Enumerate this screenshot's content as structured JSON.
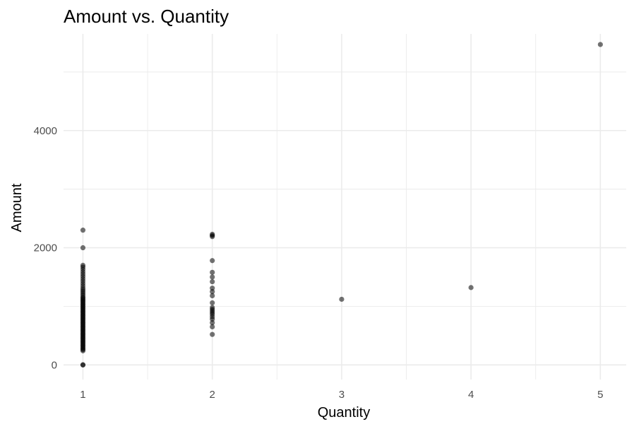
{
  "chart_data": {
    "type": "scatter",
    "title": "Amount vs. Quantity",
    "xlabel": "Quantity",
    "ylabel": "Amount",
    "xlim": [
      0.85,
      5.2
    ],
    "ylim": [
      -250,
      5650
    ],
    "x_ticks": [
      1,
      2,
      3,
      4,
      5
    ],
    "y_ticks": [
      0,
      2000,
      4000
    ],
    "x_minor_ticks": [
      1.5,
      2.5,
      3.5,
      4.5
    ],
    "y_minor_ticks": [
      1000,
      3000,
      5000
    ],
    "grid": true,
    "legend": "none",
    "point_color": "#000000",
    "point_opacity": 0.55,
    "points": [
      {
        "x": 1,
        "y": 0
      },
      {
        "x": 1,
        "y": 0
      },
      {
        "x": 1,
        "y": 240
      },
      {
        "x": 1,
        "y": 260
      },
      {
        "x": 1,
        "y": 280
      },
      {
        "x": 1,
        "y": 300
      },
      {
        "x": 1,
        "y": 320
      },
      {
        "x": 1,
        "y": 340
      },
      {
        "x": 1,
        "y": 360
      },
      {
        "x": 1,
        "y": 380
      },
      {
        "x": 1,
        "y": 400
      },
      {
        "x": 1,
        "y": 420
      },
      {
        "x": 1,
        "y": 440
      },
      {
        "x": 1,
        "y": 460
      },
      {
        "x": 1,
        "y": 480
      },
      {
        "x": 1,
        "y": 500
      },
      {
        "x": 1,
        "y": 520
      },
      {
        "x": 1,
        "y": 540
      },
      {
        "x": 1,
        "y": 560
      },
      {
        "x": 1,
        "y": 580
      },
      {
        "x": 1,
        "y": 600
      },
      {
        "x": 1,
        "y": 620
      },
      {
        "x": 1,
        "y": 640
      },
      {
        "x": 1,
        "y": 660
      },
      {
        "x": 1,
        "y": 680
      },
      {
        "x": 1,
        "y": 700
      },
      {
        "x": 1,
        "y": 720
      },
      {
        "x": 1,
        "y": 740
      },
      {
        "x": 1,
        "y": 760
      },
      {
        "x": 1,
        "y": 780
      },
      {
        "x": 1,
        "y": 800
      },
      {
        "x": 1,
        "y": 820
      },
      {
        "x": 1,
        "y": 840
      },
      {
        "x": 1,
        "y": 860
      },
      {
        "x": 1,
        "y": 880
      },
      {
        "x": 1,
        "y": 900
      },
      {
        "x": 1,
        "y": 920
      },
      {
        "x": 1,
        "y": 940
      },
      {
        "x": 1,
        "y": 960
      },
      {
        "x": 1,
        "y": 980
      },
      {
        "x": 1,
        "y": 1000
      },
      {
        "x": 1,
        "y": 1020
      },
      {
        "x": 1,
        "y": 1040
      },
      {
        "x": 1,
        "y": 1060
      },
      {
        "x": 1,
        "y": 1080
      },
      {
        "x": 1,
        "y": 1100
      },
      {
        "x": 1,
        "y": 1120
      },
      {
        "x": 1,
        "y": 1140
      },
      {
        "x": 1,
        "y": 1160
      },
      {
        "x": 1,
        "y": 1190
      },
      {
        "x": 1,
        "y": 1220
      },
      {
        "x": 1,
        "y": 1250
      },
      {
        "x": 1,
        "y": 1280
      },
      {
        "x": 1,
        "y": 1310
      },
      {
        "x": 1,
        "y": 1350
      },
      {
        "x": 1,
        "y": 1390
      },
      {
        "x": 1,
        "y": 1430
      },
      {
        "x": 1,
        "y": 1470
      },
      {
        "x": 1,
        "y": 1510
      },
      {
        "x": 1,
        "y": 1550
      },
      {
        "x": 1,
        "y": 1590
      },
      {
        "x": 1,
        "y": 1630
      },
      {
        "x": 1,
        "y": 1670
      },
      {
        "x": 1,
        "y": 1700
      },
      {
        "x": 1,
        "y": 2000
      },
      {
        "x": 1,
        "y": 2300
      },
      {
        "x": 2,
        "y": 520
      },
      {
        "x": 2,
        "y": 650
      },
      {
        "x": 2,
        "y": 720
      },
      {
        "x": 2,
        "y": 780
      },
      {
        "x": 2,
        "y": 820
      },
      {
        "x": 2,
        "y": 860
      },
      {
        "x": 2,
        "y": 890
      },
      {
        "x": 2,
        "y": 920
      },
      {
        "x": 2,
        "y": 950
      },
      {
        "x": 2,
        "y": 980
      },
      {
        "x": 2,
        "y": 1060
      },
      {
        "x": 2,
        "y": 1180
      },
      {
        "x": 2,
        "y": 1250
      },
      {
        "x": 2,
        "y": 1310
      },
      {
        "x": 2,
        "y": 1420
      },
      {
        "x": 2,
        "y": 1500
      },
      {
        "x": 2,
        "y": 1580
      },
      {
        "x": 2,
        "y": 1780
      },
      {
        "x": 2,
        "y": 2190
      },
      {
        "x": 2,
        "y": 2210
      },
      {
        "x": 2,
        "y": 2230
      },
      {
        "x": 3,
        "y": 1120
      },
      {
        "x": 4,
        "y": 1320
      },
      {
        "x": 5,
        "y": 5470
      }
    ]
  }
}
